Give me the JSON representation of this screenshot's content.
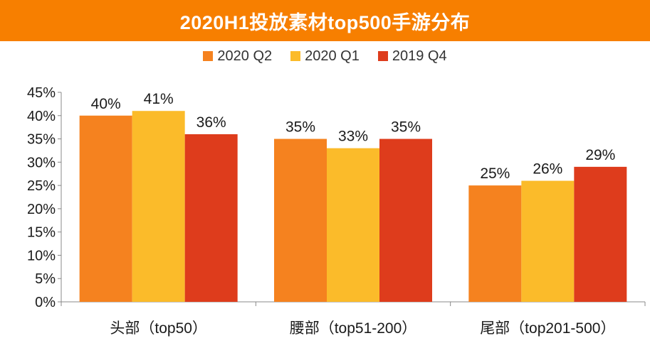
{
  "title": "2020H1投放素材top500手游分布",
  "colors": {
    "title_bg": "#f77f00",
    "title_text": "#ffffff",
    "axis": "#888888",
    "text": "#1a1a1a"
  },
  "chart_data": {
    "type": "bar",
    "title": "2020H1投放素材top500手游分布",
    "categories": [
      "头部（top50）",
      "腰部（top51-200）",
      "尾部（top201-500）"
    ],
    "series": [
      {
        "name": "2020 Q2",
        "color": "#f5821f",
        "values": [
          40,
          35,
          25
        ],
        "labels": [
          "40%",
          "35%",
          "25%"
        ]
      },
      {
        "name": "2020 Q1",
        "color": "#fbbb2a",
        "values": [
          41,
          33,
          26
        ],
        "labels": [
          "41%",
          "33%",
          "26%"
        ]
      },
      {
        "name": "2019 Q4",
        "color": "#de3c1c",
        "values": [
          36,
          35,
          29
        ],
        "labels": [
          "36%",
          "35%",
          "29%"
        ]
      }
    ],
    "ylim": [
      0,
      45
    ],
    "yticks": [
      0,
      5,
      10,
      15,
      20,
      25,
      30,
      35,
      40,
      45
    ],
    "ytick_labels": [
      "0%",
      "5%",
      "10%",
      "15%",
      "20%",
      "25%",
      "30%",
      "35%",
      "40%",
      "45%"
    ],
    "xlabel": "",
    "ylabel": "",
    "grid": false,
    "legend_position": "top-center"
  }
}
